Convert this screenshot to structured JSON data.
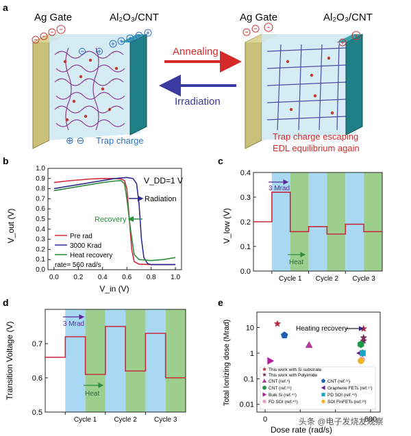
{
  "figure": {
    "panels": [
      "a",
      "b",
      "c",
      "d",
      "e"
    ]
  },
  "panel_a": {
    "left_gate": "Ag Gate",
    "left_channel": "Al₂O₃/CNT",
    "right_gate": "Ag Gate",
    "right_channel": "Al₂O₃/CNT",
    "arrow_top": "Annealing",
    "arrow_bottom": "Irradiation",
    "legend_symbols": "⊕ ⊖",
    "legend_text": "Trap charge",
    "caption_line1": "Trap charge escaping",
    "caption_line2": "EDL equilibrium again",
    "colors": {
      "annealing": "#d42a2a",
      "irradiation": "#3a3aa0",
      "legend": "#2f6fc0",
      "caption": "#d42a2a"
    }
  },
  "chart_data": [
    {
      "panel": "b",
      "type": "line",
      "xlabel": "V_in (V)",
      "ylabel": "V_out (V)",
      "xlim": [
        -0.05,
        1.05
      ],
      "ylim": [
        0.0,
        1.0
      ],
      "xticks": [
        "0.0",
        "0.2",
        "0.4",
        "0.6",
        "0.8",
        "1.0"
      ],
      "yticks": [
        "0.0",
        "0.1",
        "0.2",
        "0.3",
        "0.4",
        "0.5",
        "0.6",
        "0.7",
        "0.8",
        "0.9",
        "1.0"
      ],
      "annotations": {
        "vdd": "V_DD=1 V",
        "radiation": "Radiation",
        "recovery": "Recovery"
      },
      "legend": [
        "Pre rad",
        "3000 Krad",
        "Heat recovery"
      ],
      "legend_note": "rate= 560 rad/s",
      "series": [
        {
          "name": "Pre rad",
          "color": "#d0283a",
          "x": [
            0.0,
            0.1,
            0.2,
            0.3,
            0.4,
            0.5,
            0.55,
            0.58,
            0.6,
            0.62,
            0.64,
            0.66,
            0.7,
            0.8,
            0.9,
            1.0
          ],
          "y": [
            0.86,
            0.875,
            0.885,
            0.895,
            0.9,
            0.9,
            0.895,
            0.88,
            0.8,
            0.5,
            0.2,
            0.08,
            0.055,
            0.05,
            0.05,
            0.05
          ]
        },
        {
          "name": "3000 Krad",
          "color": "#2b2b8f",
          "x": [
            0.0,
            0.1,
            0.2,
            0.3,
            0.4,
            0.5,
            0.6,
            0.65,
            0.68,
            0.7,
            0.72,
            0.74,
            0.77,
            0.8,
            0.9,
            1.0
          ],
          "y": [
            0.8,
            0.82,
            0.84,
            0.86,
            0.88,
            0.9,
            0.91,
            0.9,
            0.85,
            0.65,
            0.3,
            0.12,
            0.06,
            0.05,
            0.05,
            0.05
          ]
        },
        {
          "name": "Heat recovery",
          "color": "#2e8b3d",
          "x": [
            0.0,
            0.1,
            0.2,
            0.3,
            0.4,
            0.5,
            0.55,
            0.58,
            0.6,
            0.63,
            0.66,
            0.7,
            0.8,
            0.9,
            1.0
          ],
          "y": [
            0.78,
            0.8,
            0.82,
            0.84,
            0.86,
            0.875,
            0.88,
            0.85,
            0.7,
            0.4,
            0.15,
            0.1,
            0.09,
            0.1,
            0.12
          ]
        }
      ]
    },
    {
      "panel": "c",
      "type": "line",
      "ylabel": "V_low (V)",
      "ylim": [
        0.0,
        0.4
      ],
      "yticks": [
        "0.0",
        "0.1",
        "0.2",
        "0.3",
        "0.4"
      ],
      "xcategories": [
        "Cycle 1",
        "Cycle 2",
        "Cycle 3"
      ],
      "annotations": {
        "dose": "3 Mrad",
        "heat": "Heat"
      },
      "series": [
        {
          "name": "V_low",
          "color": "#c8283c",
          "segments": [
            0.2,
            0.32,
            0.16,
            0.18,
            0.15,
            0.19,
            0.16
          ]
        }
      ]
    },
    {
      "panel": "d",
      "type": "line",
      "ylabel": "Transition Voltage (V)",
      "ylim": [
        0.5,
        0.8
      ],
      "yticks": [
        "0.5",
        "0.6",
        "0.7"
      ],
      "xcategories": [
        "Cycle 1",
        "Cycle 2",
        "Cycle 3"
      ],
      "annotations": {
        "dose": "3 Mrad",
        "heat": "Heat"
      },
      "series": [
        {
          "name": "Transition voltage",
          "color": "#c8283c",
          "segments": [
            0.66,
            0.72,
            0.61,
            0.75,
            0.62,
            0.73,
            0.6
          ]
        }
      ]
    },
    {
      "panel": "e",
      "type": "scatter",
      "xlabel": "Dose rate (rad/s)",
      "ylabel": "Total Ionizing dose (Mrad)",
      "yscale": "log",
      "ylim": [
        0.005,
        40
      ],
      "yticks": [
        "0.01",
        "0.1",
        "1",
        "10"
      ],
      "xticks": [
        "0",
        "",
        "",
        "600"
      ],
      "annotation": "Heating recovery",
      "legend": [
        {
          "label": "This work with Si substrate",
          "marker": "star",
          "color": "#b22b3f"
        },
        {
          "label": "This work with Polyimide",
          "marker": "star",
          "color": "#7a2c5e"
        },
        {
          "label": "CNT (ref.⁵)",
          "marker": "triangle",
          "color": "#b03a9a"
        },
        {
          "label": "CNT (ref.¹¹)",
          "marker": "pentagon",
          "color": "#1d5fb2"
        },
        {
          "label": "CNT (ref.¹⁶)",
          "marker": "hexagon",
          "color": "#22974a"
        },
        {
          "label": "Graphene FETs (ref.¹⁷)",
          "marker": "tri-left",
          "color": "#5a1f8c"
        },
        {
          "label": "Bulk Si (ref.⁴⁷)",
          "marker": "tri-right",
          "color": "#b5209a"
        },
        {
          "label": "PD SOI (ref.⁴⁸)",
          "marker": "square",
          "color": "#18a6c6"
        },
        {
          "label": "FD SOI (ref.⁴⁹)",
          "marker": "circle",
          "color": "#e8a0c8"
        },
        {
          "label": "SOI FinFETs (ref.²³)",
          "marker": "circle",
          "color": "#f0b428"
        }
      ],
      "points": [
        {
          "x": 70,
          "y": 14,
          "series": 0
        },
        {
          "x": 560,
          "y": 9,
          "series": 0
        },
        {
          "x": 560,
          "y": 4,
          "series": 1
        },
        {
          "x": 560,
          "y": 3,
          "series": 1
        },
        {
          "x": 250,
          "y": 2.1,
          "series": 2
        },
        {
          "x": 110,
          "y": 5,
          "series": 3
        },
        {
          "x": 545,
          "y": 2.2,
          "series": 4
        },
        {
          "x": 540,
          "y": 1.0,
          "series": 5
        },
        {
          "x": 30,
          "y": 0.5,
          "series": 6
        },
        {
          "x": 555,
          "y": 1.0,
          "series": 7
        },
        {
          "x": 550,
          "y": 0.55,
          "series": 8
        },
        {
          "x": 545,
          "y": 0.5,
          "series": 9
        }
      ]
    }
  ],
  "watermark": "头条 @电子发烧友观察"
}
